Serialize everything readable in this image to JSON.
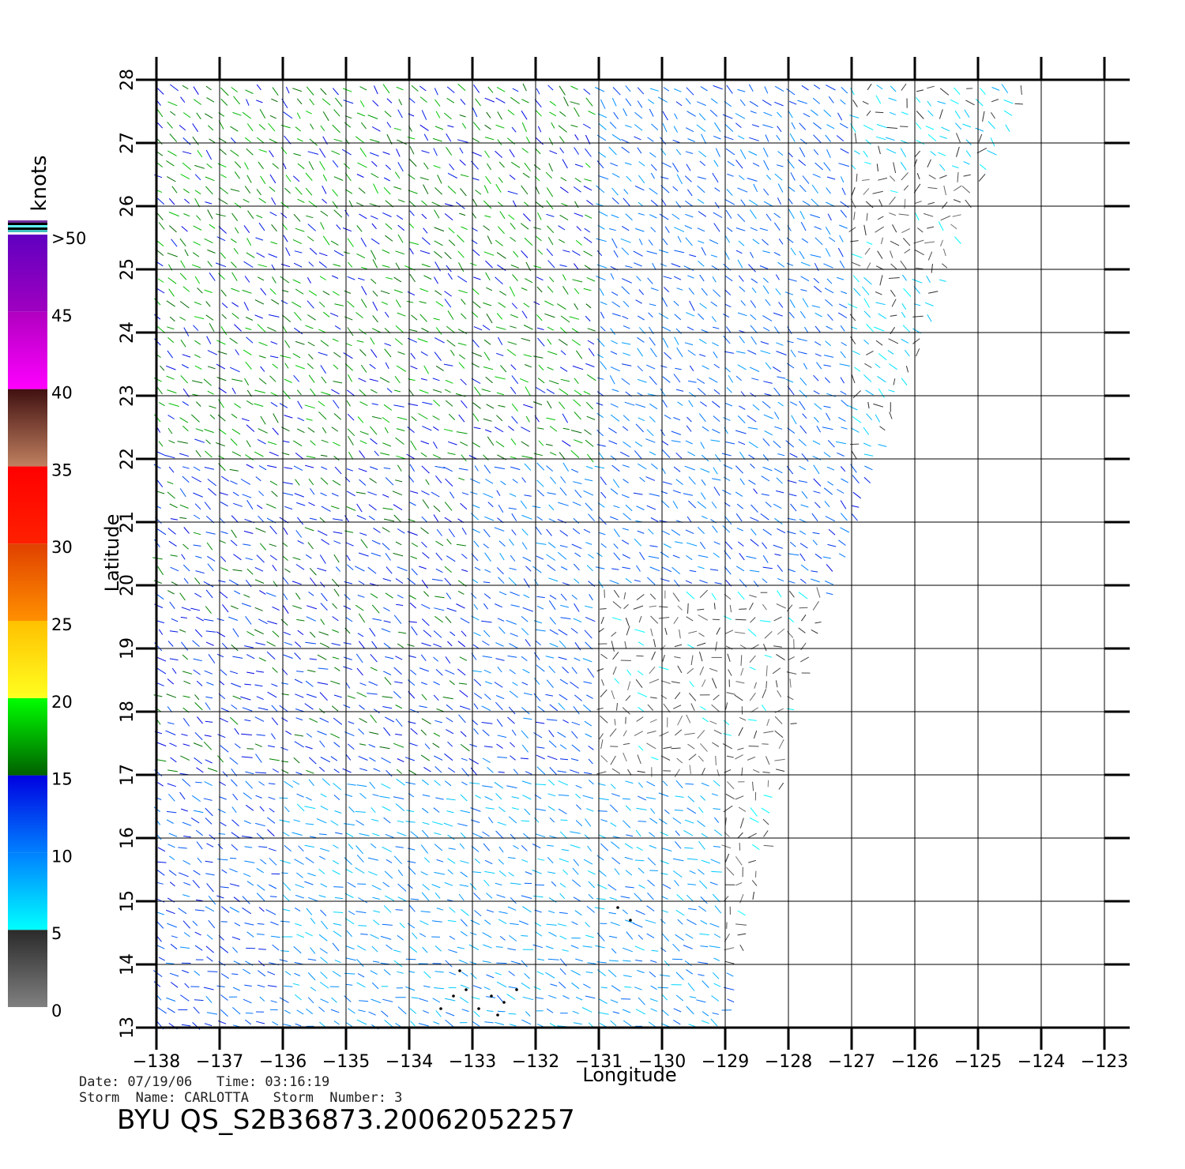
{
  "chart_data": {
    "type": "scatter",
    "subtype": "wind-vector-field",
    "xlabel": "Longitude",
    "ylabel": "Latitude",
    "xlim": [
      -138,
      -123
    ],
    "ylim": [
      13,
      28
    ],
    "x_ticks": [
      "-138",
      "-137",
      "-136",
      "-135",
      "-134",
      "-133",
      "-132",
      "-131",
      "-130",
      "-129",
      "-128",
      "-127",
      "-126",
      "-125",
      "-124",
      "-123"
    ],
    "y_ticks": [
      "13",
      "14",
      "15",
      "16",
      "17",
      "18",
      "19",
      "20",
      "21",
      "22",
      "23",
      "24",
      "25",
      "26",
      "27",
      "28"
    ],
    "grid": true,
    "swath_east_edge": [
      {
        "lat": 28,
        "lon": -124.1
      },
      {
        "lat": 26,
        "lon": -125.1
      },
      {
        "lat": 24,
        "lon": -125.8
      },
      {
        "lat": 22,
        "lon": -126.6
      },
      {
        "lat": 20,
        "lon": -127.3
      },
      {
        "lat": 18,
        "lon": -127.9
      },
      {
        "lat": 16,
        "lon": -128.3
      },
      {
        "lat": 14,
        "lon": -128.8
      },
      {
        "lat": 13,
        "lon": -129.0
      }
    ],
    "wind_speed_regions_knots": [
      {
        "region": "northwest",
        "lon": [
          -138,
          -131
        ],
        "lat": [
          22,
          28
        ],
        "speed": 16
      },
      {
        "region": "northeast",
        "lon": [
          -131,
          -127
        ],
        "lat": [
          22,
          28
        ],
        "speed": 11
      },
      {
        "region": "far-northeast",
        "lon": [
          -127,
          -124
        ],
        "lat": [
          22,
          28
        ],
        "speed": 6
      },
      {
        "region": "calm-northeast",
        "lon": [
          -127,
          -125
        ],
        "lat": [
          25,
          26.5
        ],
        "speed": 3
      },
      {
        "region": "west-mid",
        "lon": [
          -138,
          -133
        ],
        "lat": [
          17,
          22
        ],
        "speed": 14
      },
      {
        "region": "center-mid",
        "lon": [
          -133,
          -129
        ],
        "lat": [
          18,
          22
        ],
        "speed": 11
      },
      {
        "region": "east-mid-calm",
        "lon": [
          -131,
          -127.5
        ],
        "lat": [
          14,
          20
        ],
        "speed": 3
      },
      {
        "region": "south",
        "lon": [
          -136,
          -129
        ],
        "lat": [
          13,
          17
        ],
        "speed": 9
      }
    ],
    "flagged_points": [
      {
        "lon": -133.5,
        "lat": 13.3
      },
      {
        "lon": -133.3,
        "lat": 13.5
      },
      {
        "lon": -133.1,
        "lat": 13.6
      },
      {
        "lon": -132.9,
        "lat": 13.3
      },
      {
        "lon": -132.7,
        "lat": 13.5
      },
      {
        "lon": -132.5,
        "lat": 13.4
      },
      {
        "lon": -132.3,
        "lat": 13.6
      },
      {
        "lon": -133.2,
        "lat": 13.9
      },
      {
        "lon": -132.6,
        "lat": 13.2
      },
      {
        "lon": -130.5,
        "lat": 14.7
      },
      {
        "lon": -130.7,
        "lat": 14.9
      }
    ]
  },
  "colorbar": {
    "title": "knots",
    "stops": [
      {
        "label": "0",
        "value": 0
      },
      {
        "label": "5",
        "value": 5
      },
      {
        "label": "10",
        "value": 10
      },
      {
        "label": "15",
        "value": 15
      },
      {
        "label": "20",
        "value": 20
      },
      {
        "label": "25",
        "value": 25
      },
      {
        "label": "30",
        "value": 30
      },
      {
        "label": "35",
        "value": 35
      },
      {
        "label": "40",
        "value": 40
      },
      {
        "label": "45",
        "value": 45
      },
      {
        "label": ">50",
        "value": 50
      }
    ],
    "segments": [
      {
        "from": 0,
        "to": 5,
        "c1": "#808080",
        "c2": "#2a2a2a"
      },
      {
        "from": 5,
        "to": 10,
        "c1": "#00ffff",
        "c2": "#0080ff"
      },
      {
        "from": 10,
        "to": 15,
        "c1": "#0080ff",
        "c2": "#0000e0"
      },
      {
        "from": 15,
        "to": 20,
        "c1": "#006000",
        "c2": "#00ff00"
      },
      {
        "from": 20,
        "to": 25,
        "c1": "#ffff20",
        "c2": "#ffc000"
      },
      {
        "from": 25,
        "to": 30,
        "c1": "#ff9000",
        "c2": "#e04000"
      },
      {
        "from": 30,
        "to": 35,
        "c1": "#ff2000",
        "c2": "#ff0000"
      },
      {
        "from": 35,
        "to": 40,
        "c1": "#c08060",
        "c2": "#401010"
      },
      {
        "from": 40,
        "to": 45,
        "c1": "#ff00ff",
        "c2": "#b000c0"
      },
      {
        "from": 45,
        "to": 50,
        "c1": "#a000c0",
        "c2": "#6000c0"
      }
    ]
  },
  "footer": {
    "line1": "Date: 07/19/06   Time: 03:16:19",
    "line2": "Storm  Name: CARLOTTA   Storm  Number: 3",
    "title": "BYU  QS_S2B36873.20062052257"
  }
}
